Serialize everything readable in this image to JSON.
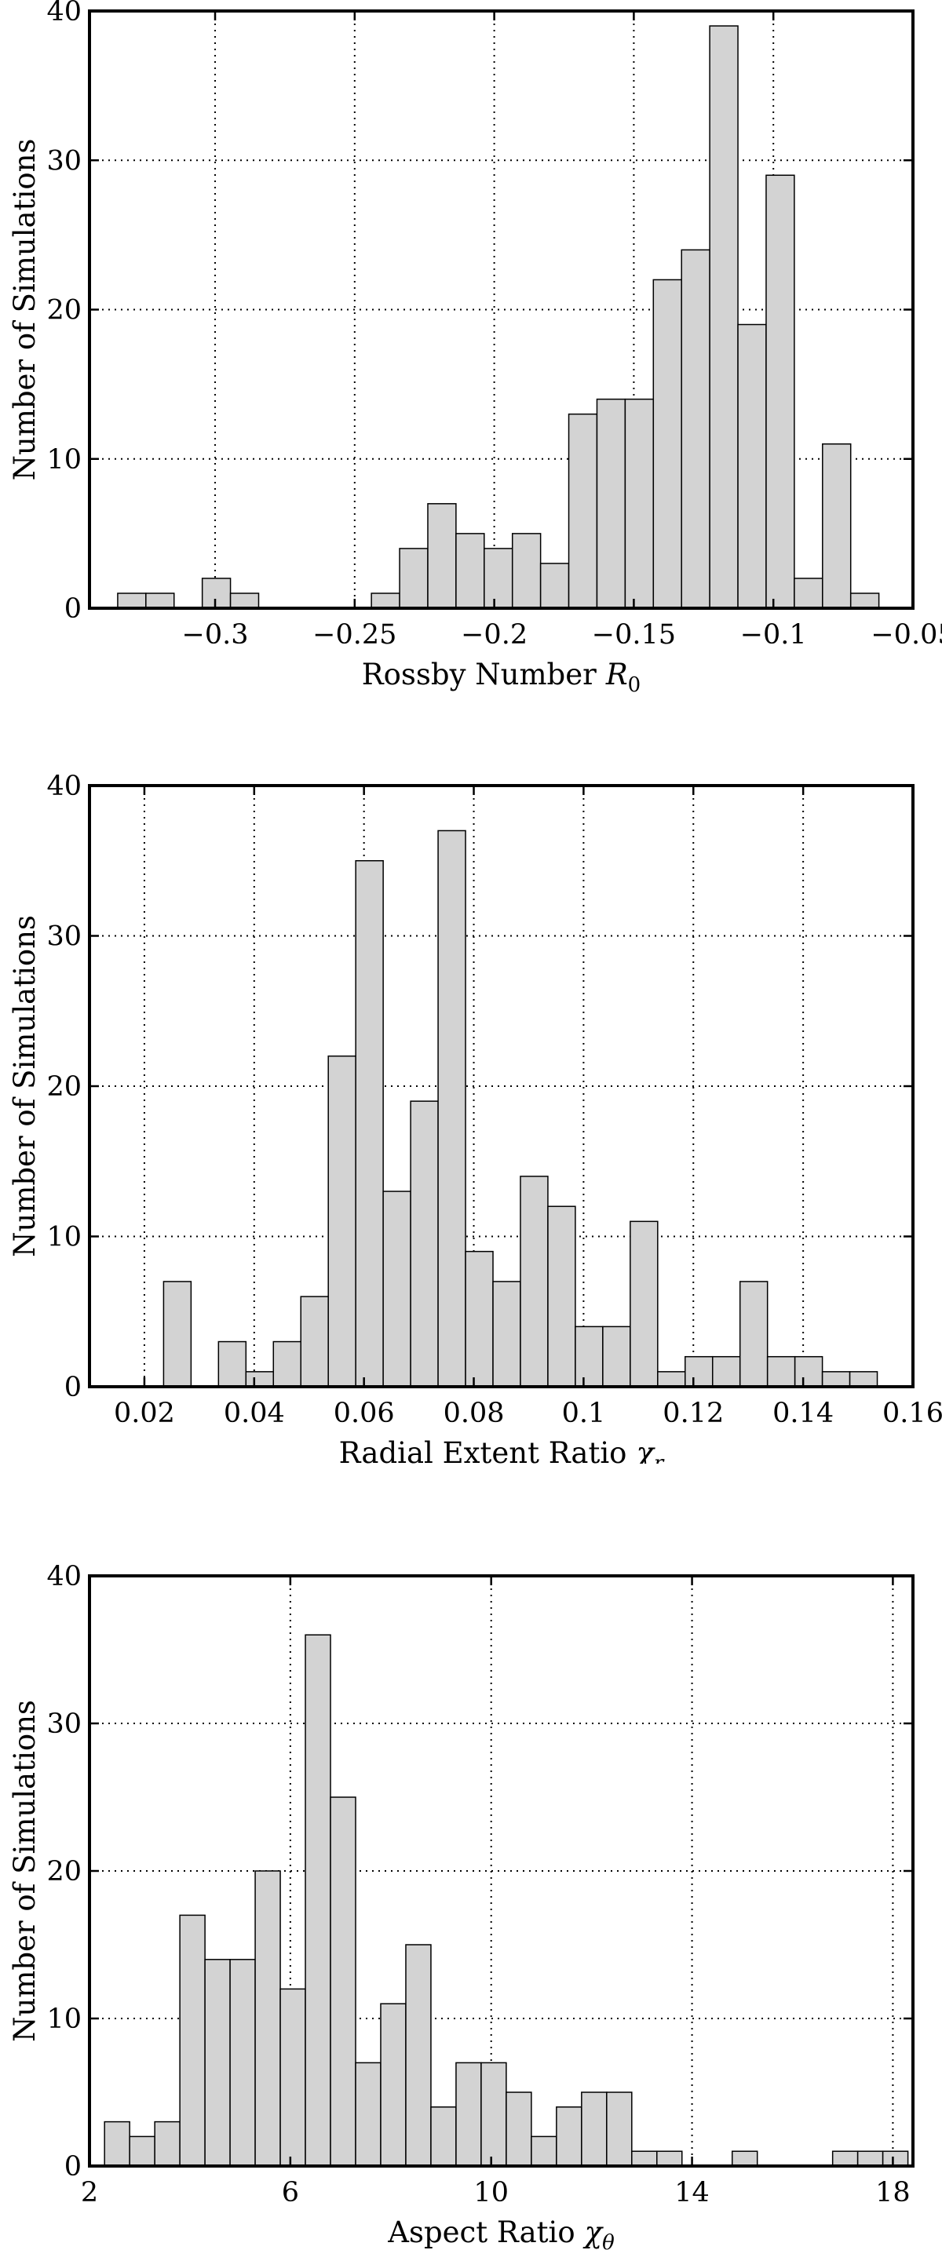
{
  "chart_data": [
    {
      "type": "bar",
      "title": "",
      "xlabel": "Rossby Number",
      "xlabel_symbol": "R",
      "xlabel_subscript": "0",
      "ylabel": "Number of Simulations",
      "xlim": [
        -0.345,
        -0.05
      ],
      "ylim": [
        0,
        40
      ],
      "xticks": [
        -0.3,
        -0.25,
        -0.2,
        -0.15,
        -0.1,
        -0.05
      ],
      "xtick_labels": [
        "−0.3",
        "−0.25",
        "−0.2",
        "−0.15",
        "−0.1",
        "−0.05"
      ],
      "yticks": [
        0,
        10,
        20,
        30,
        40
      ],
      "ytick_labels": [
        "0",
        "10",
        "20",
        "30",
        "40"
      ],
      "grid": true,
      "bar_color": "#d3d3d3",
      "bin_edges": [
        -0.345,
        -0.3349,
        -0.3248,
        -0.3147,
        -0.3046,
        -0.2945,
        -0.2844,
        -0.2743,
        -0.2642,
        -0.2541,
        -0.244,
        -0.2339,
        -0.2238,
        -0.2137,
        -0.2036,
        -0.1935,
        -0.1834,
        -0.1733,
        -0.1632,
        -0.1531,
        -0.143,
        -0.1329,
        -0.1228,
        -0.1127,
        -0.1026,
        -0.0925,
        -0.0824,
        -0.0723,
        -0.0622
      ],
      "values": [
        0,
        1,
        1,
        0,
        2,
        1,
        0,
        0,
        0,
        0,
        1,
        4,
        7,
        5,
        4,
        5,
        3,
        13,
        14,
        14,
        22,
        24,
        39,
        19,
        29,
        2,
        11,
        1
      ]
    },
    {
      "type": "bar",
      "title": "",
      "xlabel": "Radial Extent Ratio",
      "xlabel_symbol": "χ",
      "xlabel_subscript": "r",
      "ylabel": "Number of Simulations",
      "xlim": [
        0.01,
        0.16
      ],
      "ylim": [
        0,
        40
      ],
      "xticks": [
        0.02,
        0.04,
        0.06,
        0.08,
        0.1,
        0.12,
        0.14,
        0.16
      ],
      "xtick_labels": [
        "0.02",
        "0.04",
        "0.06",
        "0.08",
        "0.1",
        "0.12",
        "0.14",
        "0.16"
      ],
      "yticks": [
        0,
        10,
        20,
        30,
        40
      ],
      "ytick_labels": [
        "0",
        "10",
        "20",
        "30",
        "40"
      ],
      "grid": true,
      "bar_color": "#d3d3d3",
      "bin_edges": [
        0.0185,
        0.0235,
        0.0285,
        0.0335,
        0.0385,
        0.0435,
        0.0485,
        0.0535,
        0.0585,
        0.0635,
        0.0685,
        0.0735,
        0.0785,
        0.0835,
        0.0885,
        0.0935,
        0.0985,
        0.1035,
        0.1085,
        0.1135,
        0.1185,
        0.1235,
        0.1285,
        0.1335,
        0.1385,
        0.1435,
        0.1485,
        0.1535
      ],
      "values": [
        0,
        7,
        0,
        3,
        1,
        3,
        6,
        22,
        35,
        13,
        19,
        37,
        9,
        7,
        14,
        12,
        4,
        4,
        11,
        1,
        2,
        2,
        7,
        2,
        2,
        1,
        1
      ]
    },
    {
      "type": "bar",
      "title": "",
      "xlabel": "Aspect Ratio",
      "xlabel_symbol": "χ",
      "xlabel_subscript": "θ",
      "ylabel": "Number of Simulations",
      "xlim": [
        2,
        18.4
      ],
      "ylim": [
        0,
        40
      ],
      "xticks": [
        2,
        6,
        10,
        14,
        18
      ],
      "xtick_labels": [
        "2",
        "6",
        "10",
        "14",
        "18"
      ],
      "yticks": [
        0,
        10,
        20,
        30,
        40
      ],
      "ytick_labels": [
        "0",
        "10",
        "20",
        "30",
        "40"
      ],
      "grid": true,
      "bar_color": "#d3d3d3",
      "bin_edges": [
        2.3,
        2.8,
        3.3,
        3.8,
        4.3,
        4.8,
        5.3,
        5.8,
        6.3,
        6.8,
        7.3,
        7.8,
        8.3,
        8.8,
        9.3,
        9.8,
        10.3,
        10.8,
        11.3,
        11.8,
        12.3,
        12.8,
        13.3,
        13.8,
        14.3,
        14.8,
        15.3,
        15.8,
        16.3,
        16.8,
        17.3,
        17.8,
        18.3
      ],
      "values": [
        3,
        2,
        3,
        17,
        14,
        14,
        20,
        12,
        36,
        25,
        7,
        11,
        15,
        4,
        7,
        7,
        5,
        2,
        4,
        5,
        5,
        1,
        1,
        0,
        0,
        1,
        0,
        0,
        0,
        1,
        1,
        1
      ]
    }
  ]
}
